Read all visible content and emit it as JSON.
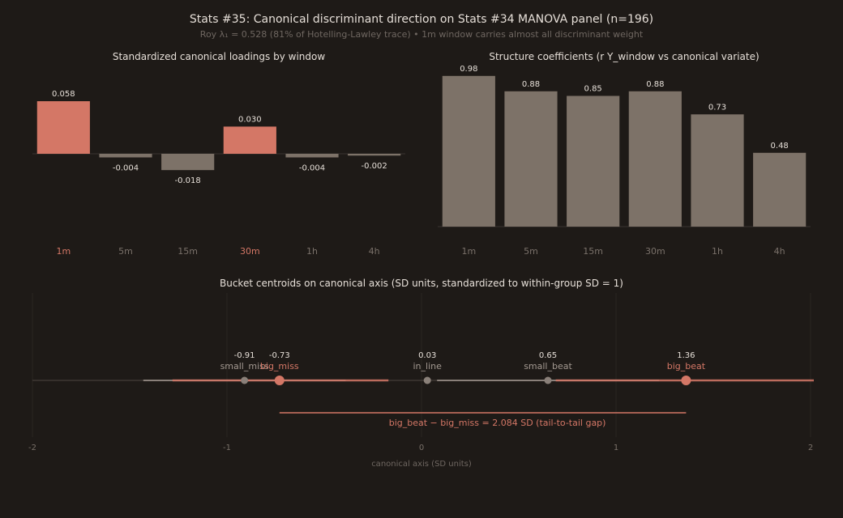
{
  "header": {
    "title": "Stats #35: Canonical discriminant direction on Stats #34 MANOVA panel (n=196)",
    "subtitle": "Roy λ₁ = 0.528 (81% of Hotelling-Lawley trace) • 1m window carries almost all discriminant weight"
  },
  "colors": {
    "background": "#1e1a17",
    "highlight": "#d47766",
    "neutral": "#7d7268",
    "text": "#e6dfd8",
    "muted": "#7a716a",
    "axis": "#3a3430"
  },
  "chart_data": [
    {
      "type": "bar",
      "title": "Standardized canonical loadings by window",
      "categories": [
        "1m",
        "5m",
        "15m",
        "30m",
        "1h",
        "4h"
      ],
      "values": [
        0.058,
        -0.004,
        -0.018,
        0.03,
        -0.004,
        -0.002
      ],
      "value_labels": [
        "0.058",
        "-0.004",
        "-0.018",
        "0.030",
        "-0.004",
        "-0.002"
      ],
      "highlighted": [
        "1m",
        "30m"
      ],
      "ylim": [
        -0.09,
        0.06
      ],
      "grid": false
    },
    {
      "type": "bar",
      "title": "Structure coefficients (r Y_window vs canonical variate)",
      "categories": [
        "1m",
        "5m",
        "15m",
        "30m",
        "1h",
        "4h"
      ],
      "values": [
        0.98,
        0.88,
        0.85,
        0.88,
        0.73,
        0.48
      ],
      "value_labels": [
        "0.98",
        "0.88",
        "0.85",
        "0.88",
        "0.73",
        "0.48"
      ],
      "ylim": [
        0,
        1.0
      ],
      "grid": false
    },
    {
      "type": "scatter",
      "title": "Bucket centroids on canonical axis (SD units, standardized to within-group SD = 1)",
      "xlabel": "canonical axis (SD units)",
      "xlim": [
        -2,
        2
      ],
      "xticks": [
        "-2",
        "-1",
        "0",
        "1",
        "2"
      ],
      "grid": true,
      "points": [
        {
          "name": "small_miss",
          "x": -0.91,
          "label": "-0.91",
          "highlight": false,
          "spread": [
            -1.43,
            -0.39
          ]
        },
        {
          "name": "big_miss",
          "x": -0.73,
          "label": "-0.73",
          "highlight": true,
          "spread": [
            -1.28,
            -0.17
          ]
        },
        {
          "name": "in_line",
          "x": 0.03,
          "label": "0.03",
          "highlight": false,
          "spread": null
        },
        {
          "name": "small_beat",
          "x": 0.65,
          "label": "0.65",
          "highlight": false,
          "spread": [
            0.08,
            1.22
          ]
        },
        {
          "name": "big_beat",
          "x": 1.36,
          "label": "1.36",
          "highlight": true,
          "spread": [
            0.69,
            2.03
          ]
        }
      ],
      "annotation": {
        "text": "big_beat − big_miss = 2.084 SD (tail-to-tail gap)",
        "from": -0.73,
        "to": 1.36
      }
    }
  ]
}
